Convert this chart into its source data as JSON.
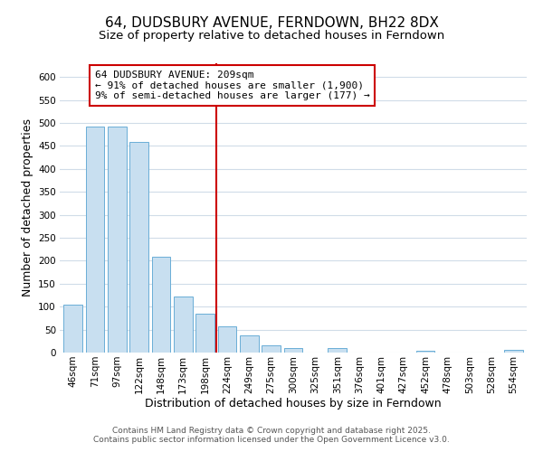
{
  "title": "64, DUDSBURY AVENUE, FERNDOWN, BH22 8DX",
  "subtitle": "Size of property relative to detached houses in Ferndown",
  "xlabel": "Distribution of detached houses by size in Ferndown",
  "ylabel": "Number of detached properties",
  "bar_labels": [
    "46sqm",
    "71sqm",
    "97sqm",
    "122sqm",
    "148sqm",
    "173sqm",
    "198sqm",
    "224sqm",
    "249sqm",
    "275sqm",
    "300sqm",
    "325sqm",
    "351sqm",
    "376sqm",
    "401sqm",
    "427sqm",
    "452sqm",
    "478sqm",
    "503sqm",
    "528sqm",
    "554sqm"
  ],
  "bar_values": [
    105,
    492,
    492,
    458,
    208,
    123,
    84,
    58,
    37,
    15,
    10,
    0,
    10,
    0,
    0,
    0,
    4,
    0,
    0,
    0,
    5
  ],
  "bar_color": "#c8dff0",
  "bar_edge_color": "#6aaed6",
  "ylim": [
    0,
    630
  ],
  "yticks": [
    0,
    50,
    100,
    150,
    200,
    250,
    300,
    350,
    400,
    450,
    500,
    550,
    600
  ],
  "vline_x_index": 6.5,
  "vline_color": "#cc0000",
  "annotation_title": "64 DUDSBURY AVENUE: 209sqm",
  "annotation_line1": "← 91% of detached houses are smaller (1,900)",
  "annotation_line2": "9% of semi-detached houses are larger (177) →",
  "annotation_box_color": "#ffffff",
  "annotation_box_edge": "#cc0000",
  "footer1": "Contains HM Land Registry data © Crown copyright and database right 2025.",
  "footer2": "Contains public sector information licensed under the Open Government Licence v3.0.",
  "background_color": "#ffffff",
  "grid_color": "#d0dce8",
  "title_fontsize": 11,
  "subtitle_fontsize": 9.5,
  "axis_label_fontsize": 9,
  "tick_fontsize": 7.5,
  "footer_fontsize": 6.5
}
